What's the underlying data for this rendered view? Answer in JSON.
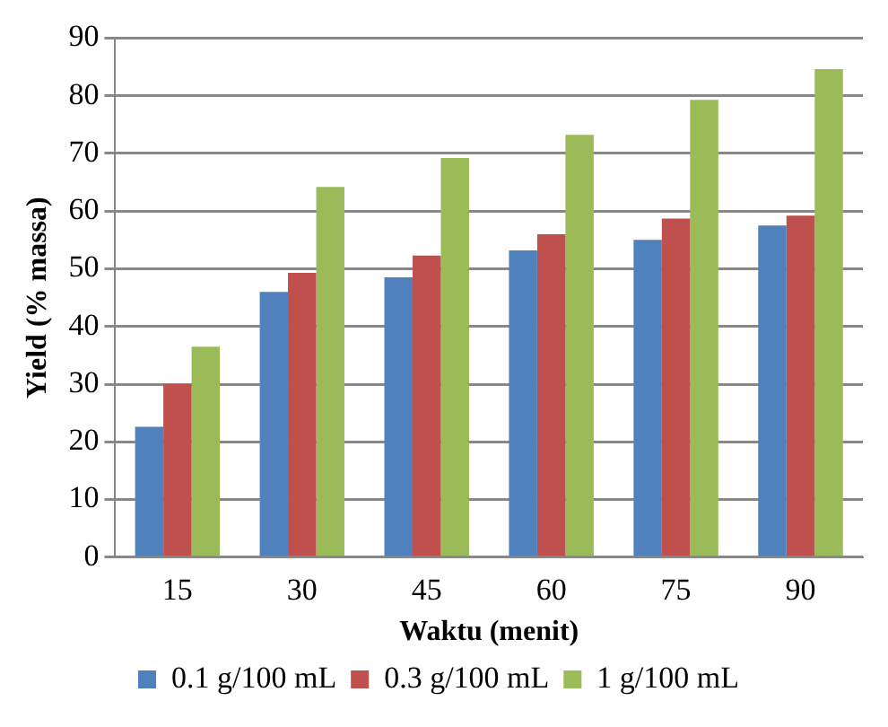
{
  "chart_data": {
    "type": "bar",
    "xlabel": "Waktu (menit)",
    "ylabel": "Yield (% massa)",
    "categories": [
      "15",
      "30",
      "45",
      "60",
      "75",
      "90"
    ],
    "series": [
      {
        "name": "0.1 g/100 mL",
        "color": "#4f81bd",
        "values": [
          22.6,
          46,
          48.5,
          53.2,
          55,
          57.5
        ]
      },
      {
        "name": "0.3 g/100 mL",
        "color": "#c0504d",
        "values": [
          30,
          49.3,
          52.3,
          56,
          58.7,
          59.2
        ]
      },
      {
        "name": "1 g/100 mL",
        "color": "#9bbb59",
        "values": [
          36.5,
          64.2,
          69.2,
          73.2,
          79.3,
          84.6
        ]
      }
    ],
    "ylim": [
      0,
      90
    ],
    "yticks": [
      0,
      10,
      20,
      30,
      40,
      50,
      60,
      70,
      80,
      90
    ],
    "grid": "y",
    "legend": "bottom"
  }
}
